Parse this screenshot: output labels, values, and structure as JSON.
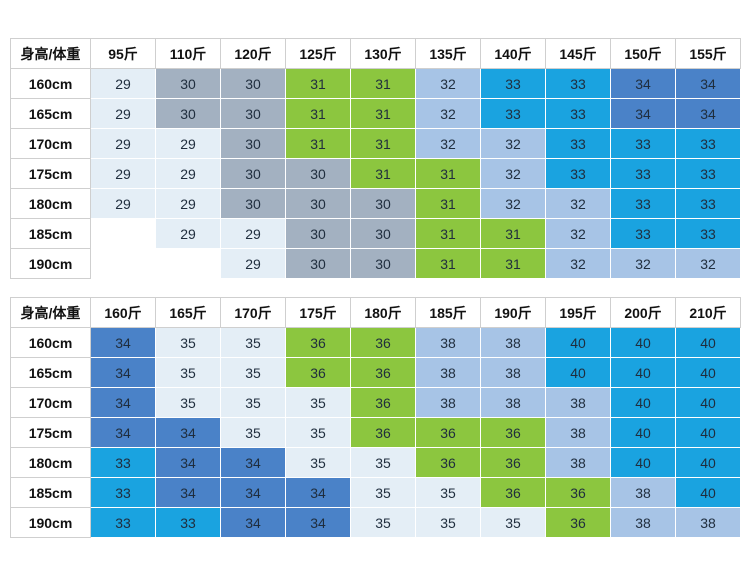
{
  "colors": {
    "29": "#e4eef6",
    "30": "#a3b1c1",
    "31": "#8cc63f",
    "32": "#a7c4e6",
    "33": "#1aa3e0",
    "34": "#4a82c8",
    "35": "#e4eef6",
    "36": "#8cc63f",
    "38": "#a7c4e6",
    "40": "#1aa3e0"
  },
  "tables": [
    {
      "corner": "身高/体重",
      "columns": [
        "95斤",
        "110斤",
        "120斤",
        "125斤",
        "130斤",
        "135斤",
        "140斤",
        "145斤",
        "150斤",
        "155斤"
      ],
      "rows": [
        {
          "height": "160cm",
          "values": [
            "29",
            "30",
            "30",
            "31",
            "31",
            "32",
            "33",
            "33",
            "34",
            "34"
          ]
        },
        {
          "height": "165cm",
          "values": [
            "29",
            "30",
            "30",
            "31",
            "31",
            "32",
            "33",
            "33",
            "34",
            "34"
          ]
        },
        {
          "height": "170cm",
          "values": [
            "29",
            "29",
            "30",
            "31",
            "31",
            "32",
            "32",
            "33",
            "33",
            "33"
          ]
        },
        {
          "height": "175cm",
          "values": [
            "29",
            "29",
            "30",
            "30",
            "31",
            "31",
            "32",
            "33",
            "33",
            "33"
          ]
        },
        {
          "height": "180cm",
          "values": [
            "29",
            "29",
            "30",
            "30",
            "30",
            "31",
            "32",
            "32",
            "33",
            "33"
          ]
        },
        {
          "height": "185cm",
          "values": [
            "",
            "29",
            "29",
            "30",
            "30",
            "31",
            "31",
            "32",
            "33",
            "33"
          ]
        },
        {
          "height": "190cm",
          "values": [
            "",
            "",
            "29",
            "30",
            "30",
            "31",
            "31",
            "32",
            "32",
            "32"
          ]
        }
      ]
    },
    {
      "corner": "身高/体重",
      "columns": [
        "160斤",
        "165斤",
        "170斤",
        "175斤",
        "180斤",
        "185斤",
        "190斤",
        "195斤",
        "200斤",
        "210斤"
      ],
      "rows": [
        {
          "height": "160cm",
          "values": [
            "34",
            "35",
            "35",
            "36",
            "36",
            "38",
            "38",
            "40",
            "40",
            "40"
          ]
        },
        {
          "height": "165cm",
          "values": [
            "34",
            "35",
            "35",
            "36",
            "36",
            "38",
            "38",
            "40",
            "40",
            "40"
          ]
        },
        {
          "height": "170cm",
          "values": [
            "34",
            "35",
            "35",
            "35",
            "36",
            "38",
            "38",
            "38",
            "40",
            "40"
          ]
        },
        {
          "height": "175cm",
          "values": [
            "34",
            "34",
            "35",
            "35",
            "36",
            "36",
            "36",
            "38",
            "40",
            "40"
          ]
        },
        {
          "height": "180cm",
          "values": [
            "33",
            "34",
            "34",
            "35",
            "35",
            "36",
            "36",
            "38",
            "40",
            "40"
          ]
        },
        {
          "height": "185cm",
          "values": [
            "33",
            "34",
            "34",
            "34",
            "35",
            "35",
            "36",
            "36",
            "38",
            "40"
          ]
        },
        {
          "height": "190cm",
          "values": [
            "33",
            "33",
            "34",
            "34",
            "35",
            "35",
            "35",
            "36",
            "38",
            "38"
          ]
        }
      ]
    }
  ]
}
